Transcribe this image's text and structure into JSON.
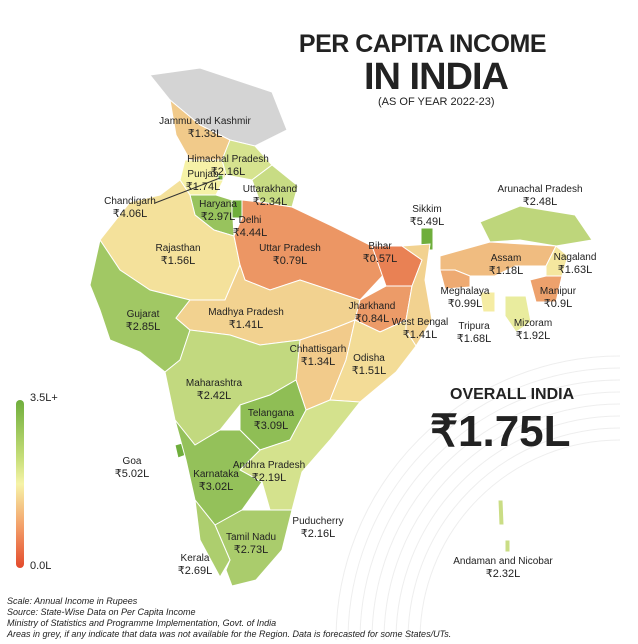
{
  "title_line1": "PER CAPITA INCOME",
  "title_line2": "IN INDIA",
  "subtitle": "(AS OF YEAR 2022-23)",
  "overall": {
    "label": "OVERALL INDIA",
    "value": "₹1.75L"
  },
  "legend": {
    "max_label": "3.5L+",
    "min_label": "0.0L",
    "colors": {
      "low": "#e34a2c",
      "mid": "#f6f3a8",
      "high": "#6fae3c"
    }
  },
  "footer": [
    "Scale: Annual Income in Rupees",
    "Source: State-Wise Data on Per Capita Income",
    "Ministry of Statistics and Programme Implementation, Govt. of India",
    "Areas in grey, if any indicate that data was not available for the Region. Data is forecasted for some States/UTs."
  ],
  "no_data_color": "#d4d4d4",
  "regions": [
    {
      "name": "Jammu and Kashmir",
      "value": "₹1.33L",
      "lakh": 1.33
    },
    {
      "name": "Himachal Pradesh",
      "value": "₹2.16L",
      "lakh": 2.16
    },
    {
      "name": "Punjab",
      "value": "₹1.74L",
      "lakh": 1.74
    },
    {
      "name": "Chandigarh",
      "value": "₹4.06L",
      "lakh": 4.06
    },
    {
      "name": "Uttarakhand",
      "value": "₹2.34L",
      "lakh": 2.34
    },
    {
      "name": "Haryana",
      "value": "₹2.97L",
      "lakh": 2.97
    },
    {
      "name": "Delhi",
      "value": "₹4.44L",
      "lakh": 4.44
    },
    {
      "name": "Rajasthan",
      "value": "₹1.56L",
      "lakh": 1.56
    },
    {
      "name": "Uttar Pradesh",
      "value": "₹0.79L",
      "lakh": 0.79
    },
    {
      "name": "Bihar",
      "value": "₹0.57L",
      "lakh": 0.57
    },
    {
      "name": "Sikkim",
      "value": "₹5.49L",
      "lakh": 5.49
    },
    {
      "name": "Arunachal Pradesh",
      "value": "₹2.48L",
      "lakh": 2.48
    },
    {
      "name": "Assam",
      "value": "₹1.18L",
      "lakh": 1.18
    },
    {
      "name": "Nagaland",
      "value": "₹1.63L",
      "lakh": 1.63
    },
    {
      "name": "Meghalaya",
      "value": "₹0.99L",
      "lakh": 0.99
    },
    {
      "name": "Manipur",
      "value": "₹0.9L",
      "lakh": 0.9
    },
    {
      "name": "Tripura",
      "value": "₹1.68L",
      "lakh": 1.68
    },
    {
      "name": "Mizoram",
      "value": "₹1.92L",
      "lakh": 1.92
    },
    {
      "name": "Gujarat",
      "value": "₹2.85L",
      "lakh": 2.85
    },
    {
      "name": "Madhya Pradesh",
      "value": "₹1.41L",
      "lakh": 1.41
    },
    {
      "name": "Jharkhand",
      "value": "₹0.84L",
      "lakh": 0.84
    },
    {
      "name": "West Bengal",
      "value": "₹1.41L",
      "lakh": 1.41
    },
    {
      "name": "Chhattisgarh",
      "value": "₹1.34L",
      "lakh": 1.34
    },
    {
      "name": "Odisha",
      "value": "₹1.51L",
      "lakh": 1.51
    },
    {
      "name": "Maharashtra",
      "value": "₹2.42L",
      "lakh": 2.42
    },
    {
      "name": "Telangana",
      "value": "₹3.09L",
      "lakh": 3.09
    },
    {
      "name": "Goa",
      "value": "₹5.02L",
      "lakh": 5.02
    },
    {
      "name": "Andhra Pradesh",
      "value": "₹2.19L",
      "lakh": 2.19
    },
    {
      "name": "Karnataka",
      "value": "₹3.02L",
      "lakh": 3.02
    },
    {
      "name": "Puducherry",
      "value": "₹2.16L",
      "lakh": 2.16
    },
    {
      "name": "Tamil Nadu",
      "value": "₹2.73L",
      "lakh": 2.73
    },
    {
      "name": "Kerala",
      "value": "₹2.69L",
      "lakh": 2.69
    },
    {
      "name": "Andaman and Nicobar",
      "value": "₹2.32L",
      "lakh": 2.32
    }
  ]
}
